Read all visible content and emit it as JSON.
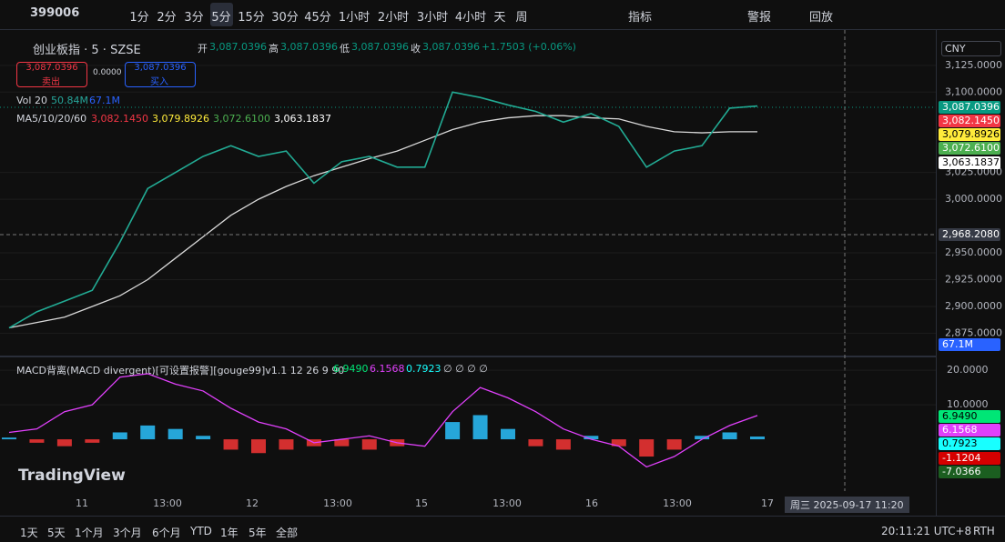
{
  "toolbar": {
    "symbol": "399006",
    "intervals": [
      "1分",
      "2分",
      "3分",
      "5分",
      "15分",
      "30分",
      "45分",
      "1小时",
      "2小时",
      "3小时",
      "4小时",
      "天",
      "周"
    ],
    "indicators": "指标",
    "alert": "警报",
    "replay": "回放"
  },
  "legend": {
    "name": "创业板指 · 5 · SZSE",
    "open_label": "开",
    "open": "3,087.0396",
    "high_label": "高",
    "high": "3,087.0396",
    "low_label": "低",
    "low": "3,087.0396",
    "close_label": "收",
    "close": "3,087.0396",
    "change": "+1.7503 (+0.06%)",
    "sell_price": "3,087.0396",
    "sell": "卖出",
    "spread": "0.0000",
    "buy_price": "3,087.0396",
    "buy": "买入",
    "vol_label": "Vol 20",
    "vol1": "50.84M",
    "vol2": "67.1M",
    "ma_label": "MA5/10/20/60",
    "ma": [
      "3,082.1450",
      "3,079.8926",
      "3,072.6100",
      "3,063.1837"
    ]
  },
  "currency": "CNY",
  "price_chart": {
    "ylim": [
      2855,
      3152
    ],
    "yticks": [
      {
        "value": 3125,
        "label": "3,125.0000"
      },
      {
        "value": 3100,
        "label": "3,100.0000"
      },
      {
        "value": 3025,
        "label": "3,025.0000"
      },
      {
        "value": 3000,
        "label": "3,000.0000"
      },
      {
        "value": 2950,
        "label": "2,950.0000"
      },
      {
        "value": 2925,
        "label": "2,925.0000"
      },
      {
        "value": 2900,
        "label": "2,900.0000"
      },
      {
        "value": 2875,
        "label": "2,875.0000"
      }
    ],
    "close": [
      2880,
      2895,
      2905,
      2915,
      2960,
      3010,
      3025,
      3040,
      3050,
      3040,
      3045,
      3015,
      3035,
      3040,
      3030,
      3030,
      3100,
      3095,
      3088,
      3082,
      3072,
      3080,
      3068,
      3030,
      3045,
      3050,
      3085,
      3087
    ],
    "ma60": [
      2880,
      2885,
      2890,
      2900,
      2910,
      2925,
      2945,
      2965,
      2985,
      3000,
      3012,
      3022,
      3030,
      3038,
      3045,
      3055,
      3065,
      3072,
      3076,
      3078,
      3078,
      3076,
      3075,
      3068,
      3063,
      3062,
      3063,
      3063
    ],
    "badges": {
      "last": "3,087.0396",
      "ma5": "3,082.1450",
      "ma10": "3,079.8926",
      "ma20": "3,072.6100",
      "ma60": "3,063.1837",
      "crosshair": "2,968.2080",
      "volume": "67.1M"
    }
  },
  "macd": {
    "label": "MACD背离(MACD divergent)[可设置报警][gouge99]v1.1 12 26 9 90",
    "v1": "6.9490",
    "v2": "6.1568",
    "v3": "0.7923",
    "flags": "∅ ∅ ∅ ∅",
    "ylim": [
      -15,
      23.2
    ],
    "yticks": [
      {
        "value": 20,
        "label": "20.0000"
      },
      {
        "value": 10,
        "label": "10.0000"
      }
    ],
    "dif": [
      2,
      3,
      8,
      10,
      18,
      19,
      16,
      14,
      9,
      5,
      3,
      -1,
      0,
      1,
      -1,
      -2,
      8,
      15,
      12,
      8,
      3,
      0,
      -2,
      -8,
      -5,
      0,
      4,
      6.9
    ],
    "hist": [
      0.5,
      -1,
      -2,
      -1,
      2,
      4,
      3,
      1,
      -3,
      -4,
      -3,
      -2,
      -2,
      -3,
      -2,
      0,
      5,
      7,
      3,
      -2,
      -3,
      1,
      -2,
      -5,
      -3,
      1,
      2,
      0.8
    ],
    "badges": [
      "6.9490",
      "6.1568",
      "0.7923",
      "-1.1204",
      "-7.0366"
    ]
  },
  "time_axis": [
    "11",
    "13:00",
    "12",
    "13:00",
    "15",
    "13:00",
    "16",
    "13:00",
    "17"
  ],
  "crosshair_time": "周三 2025-09-17   11:20",
  "logo": "TradingView",
  "ranges": [
    "1天",
    "5天",
    "1个月",
    "3个月",
    "6个月",
    "YTD",
    "1年",
    "5年",
    "全部"
  ],
  "clock": "20:11:21 UTC+8",
  "session": "RTH"
}
